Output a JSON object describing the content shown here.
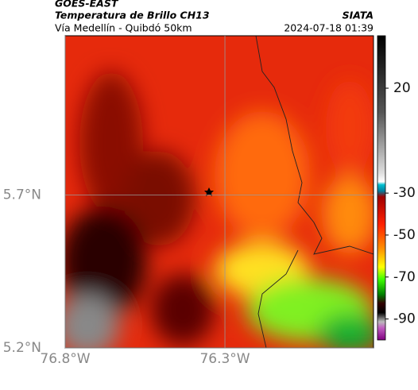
{
  "header": {
    "source": "GOES-EAST",
    "title": "Temperatura de Brillo CH13",
    "subtitle": "Vía Medellín - Quibdó 50km",
    "agency": "SIATA",
    "datetime": "2024-07-18 01:39"
  },
  "map": {
    "xlim": [
      -76.8,
      -75.835
    ],
    "ylim": [
      5.2,
      6.22
    ],
    "xticks": [
      {
        "value": -76.8,
        "label": "76.8°W"
      },
      {
        "value": -76.3,
        "label": "76.3°W"
      }
    ],
    "yticks": [
      {
        "value": 5.2,
        "label": "5.2°N"
      },
      {
        "value": 5.7,
        "label": "5.7°N"
      }
    ],
    "grid": true
  },
  "colorbar": {
    "clim": [
      -100,
      45
    ],
    "ticks": [
      20,
      -30,
      -50,
      -70,
      -90
    ]
  }
}
